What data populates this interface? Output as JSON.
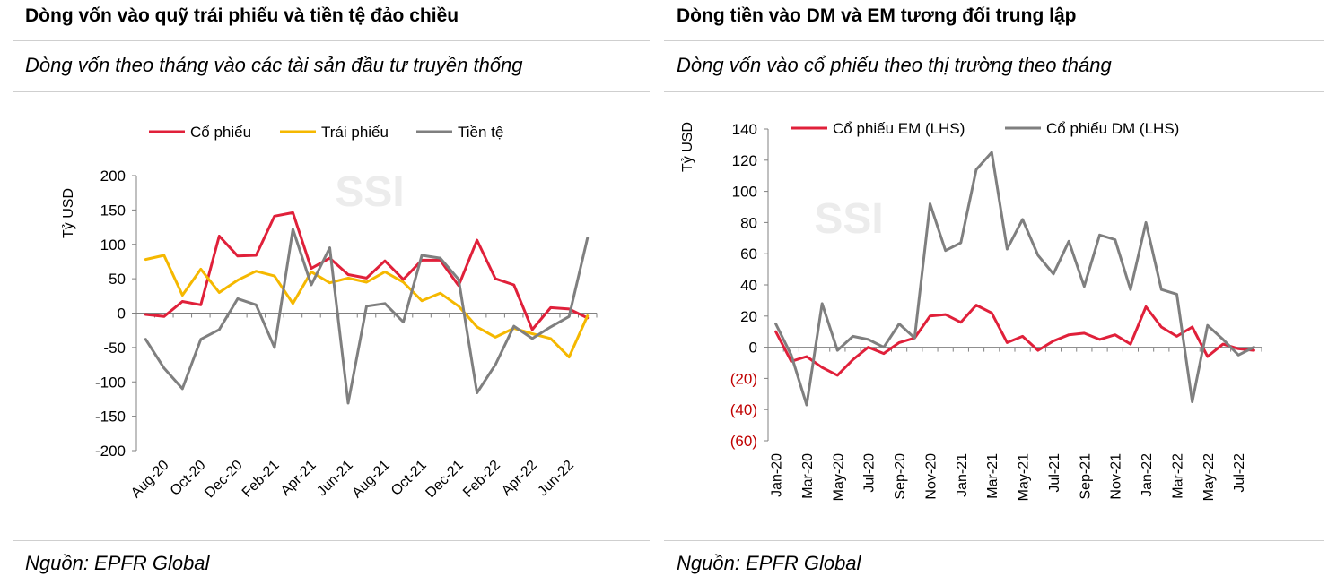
{
  "left": {
    "title": "Dòng vốn vào quỹ trái phiếu và tiền tệ đảo chiều",
    "subtitle": "Dòng vốn theo tháng vào các tài sản đầu tư truyền thống",
    "source": "Nguồn: EPFR Global",
    "watermark": "SSI"
  },
  "right": {
    "title": "Dòng tiền vào DM và EM tương đối trung lập",
    "subtitle": "Dòng vốn vào cổ phiếu theo thị trường theo tháng",
    "source": "Nguồn: EPFR Global",
    "watermark": "SSI"
  },
  "colors": {
    "red": "#e0203a",
    "yellow": "#f5b800",
    "gray": "#7f7f7f",
    "neg_label": "#c00000"
  },
  "chart_data": [
    {
      "type": "line",
      "ylabel": "Tỷ USD",
      "ylim": [
        -200,
        200
      ],
      "yticks": [
        200,
        150,
        100,
        50,
        0,
        -50,
        -100,
        -150,
        -200
      ],
      "ytick_labels": [
        "200",
        "150",
        "100",
        "50",
        "0",
        "-50",
        "-100",
        "-150",
        "-200"
      ],
      "x_tick_labels": [
        "Aug-20",
        "Oct-20",
        "Dec-20",
        "Feb-21",
        "Apr-21",
        "Jun-21",
        "Aug-21",
        "Oct-21",
        "Dec-21",
        "Feb-22",
        "Apr-22",
        "Jun-22"
      ],
      "x_tick_start_index": 1,
      "x_tick_step": 2,
      "n_points": 25,
      "legend_position": "top",
      "series": [
        {
          "name": "Cổ phiếu",
          "color": "#e0203a",
          "values": [
            -2,
            -5,
            17,
            12,
            112,
            83,
            84,
            141,
            146,
            65,
            80,
            56,
            51,
            76,
            49,
            77,
            77,
            40,
            106,
            50,
            41,
            -24,
            8,
            6,
            -7
          ]
        },
        {
          "name": "Trái phiếu",
          "color": "#f5b800",
          "values": [
            78,
            84,
            26,
            64,
            30,
            48,
            61,
            54,
            14,
            60,
            44,
            51,
            45,
            60,
            45,
            18,
            29,
            10,
            -20,
            -35,
            -22,
            -30,
            -37,
            -64,
            -4
          ]
        },
        {
          "name": "Tiền tệ",
          "color": "#7f7f7f",
          "values": [
            -38,
            -80,
            -110,
            -38,
            -24,
            21,
            12,
            -50,
            122,
            41,
            95,
            -131,
            10,
            14,
            -13,
            84,
            80,
            49,
            -116,
            -75,
            -19,
            -37,
            -20,
            -5,
            109
          ]
        }
      ]
    },
    {
      "type": "line",
      "ylabel": "Tỷ USD",
      "ylim": [
        -60,
        140
      ],
      "yticks": [
        140,
        120,
        100,
        80,
        60,
        40,
        20,
        0,
        -20,
        -40,
        -60
      ],
      "ytick_labels": [
        "140",
        "120",
        "100",
        "80",
        "60",
        "40",
        "20",
        "0",
        "(20)",
        "(40)",
        "(60)"
      ],
      "x_tick_labels": [
        "Jan-20",
        "Mar-20",
        "May-20",
        "Jul-20",
        "Sep-20",
        "Nov-20",
        "Jan-21",
        "Mar-21",
        "May-21",
        "Jul-21",
        "Sep-21",
        "Nov-21",
        "Jan-22",
        "Mar-22",
        "May-22",
        "Jul-22"
      ],
      "x_tick_start_index": 0,
      "x_tick_step": 2,
      "n_points": 32,
      "legend_position": "top",
      "series": [
        {
          "name": "Cổ phiếu EM (LHS)",
          "color": "#e0203a",
          "values": [
            10,
            -9,
            -6,
            -13,
            -18,
            -8,
            0,
            -4,
            3,
            6,
            20,
            21,
            16,
            27,
            22,
            3,
            7,
            -2,
            4,
            8,
            9,
            5,
            8,
            2,
            26,
            13,
            7,
            13,
            -6,
            2,
            -1,
            -2
          ]
        },
        {
          "name": "Cổ phiếu DM (LHS)",
          "color": "#7f7f7f",
          "values": [
            15,
            -5,
            -37,
            28,
            -2,
            7,
            5,
            0,
            15,
            6,
            92,
            62,
            67,
            114,
            125,
            63,
            82,
            59,
            47,
            68,
            39,
            72,
            69,
            37,
            80,
            37,
            34,
            -35,
            14,
            5,
            -5,
            0
          ]
        }
      ]
    }
  ]
}
